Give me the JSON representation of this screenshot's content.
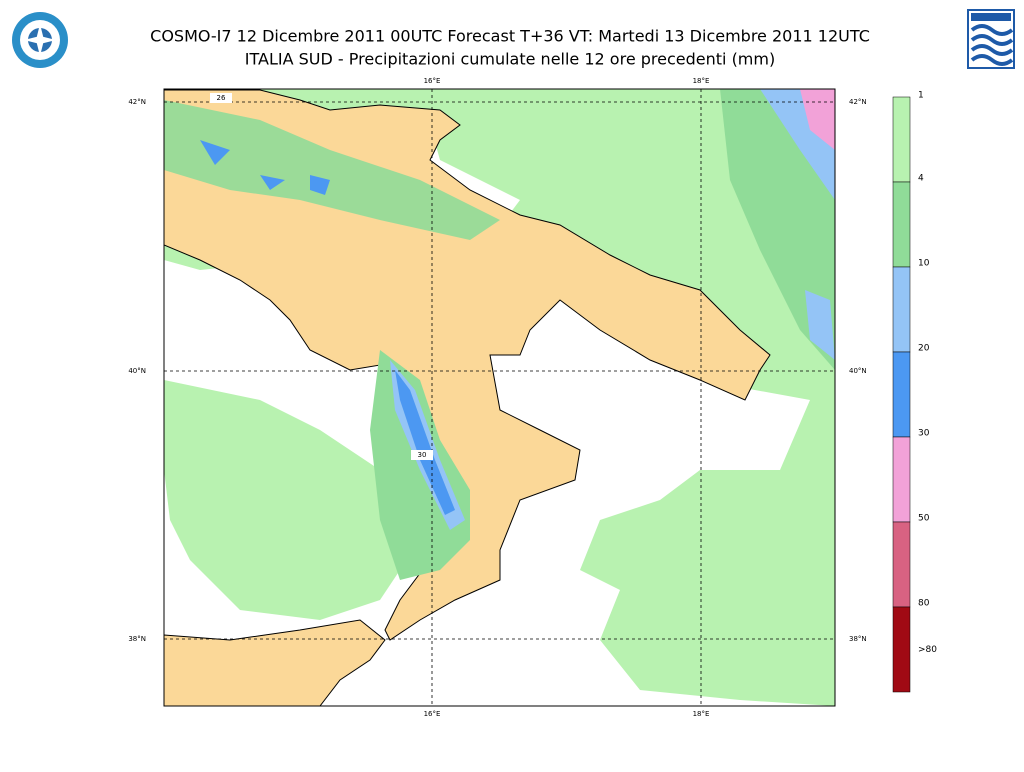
{
  "header": {
    "title_line1": "COSMO-I7 12 Dicembre 2011 00UTC Forecast T+36 VT: Martedi 13 Dicembre 2011 12UTC",
    "title_line2": "ITALIA SUD - Precipitazioni cumulate nelle 12 ore precedenti (mm)"
  },
  "map": {
    "lon_labels": [
      "16°E",
      "18°E"
    ],
    "lat_labels": [
      "42°N",
      "40°N",
      "38°N"
    ],
    "contour_labels": [
      "26",
      "30"
    ]
  },
  "legend": {
    "labels": [
      "1",
      "4",
      "10",
      "20",
      "30",
      "50",
      "80",
      ">80"
    ],
    "colors": [
      "#b8f2b0",
      "#90dc98",
      "#94c4f6",
      "#4c98f2",
      "#f2a2d8",
      "#d86282",
      "#a00a14"
    ]
  }
}
